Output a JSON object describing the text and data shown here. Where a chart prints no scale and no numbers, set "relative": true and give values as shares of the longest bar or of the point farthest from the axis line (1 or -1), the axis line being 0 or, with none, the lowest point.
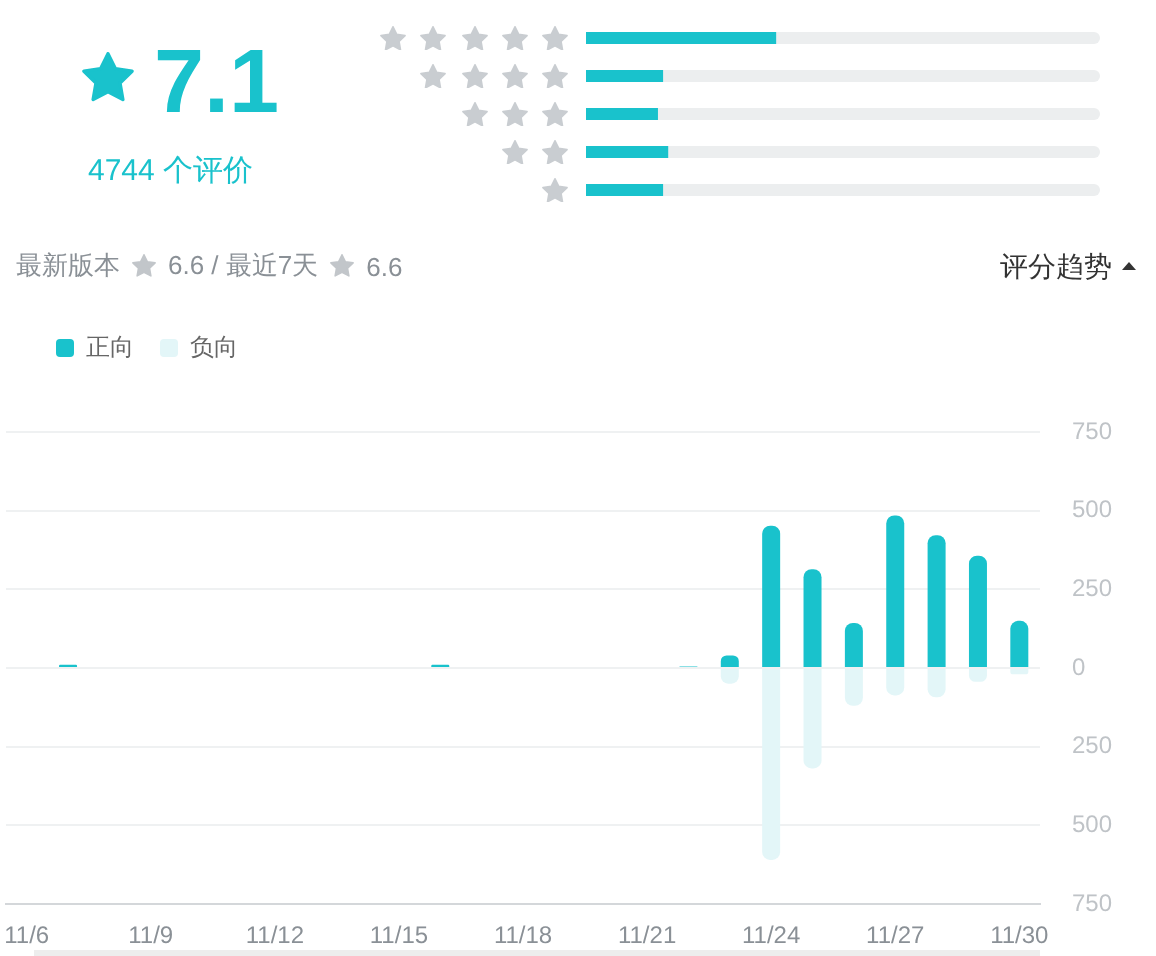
{
  "chart_data": [
    {
      "type": "other",
      "title": "7.1",
      "annotations": [
        "4744 个评价"
      ]
    },
    {
      "type": "bar",
      "orientation": "horizontal",
      "stacked": true,
      "relative": true,
      "categories": [
        null,
        null,
        null,
        null,
        null
      ],
      "series": [
        {
          "color": "#19c2cc",
          "values": [
            0.37,
            0.15,
            0.14,
            0.16,
            0.15
          ]
        },
        {
          "color": "#eceeef",
          "values": [
            0.63,
            0.85,
            0.86,
            0.84,
            0.85
          ]
        }
      ]
    },
    {
      "type": "bar",
      "title": "评分趋势",
      "annotations": [
        "最新版本",
        "6.6 / 最近7天",
        "6.6"
      ],
      "stacked": true,
      "categories": [
        "11/6",
        null,
        null,
        "11/9",
        null,
        null,
        "11/12",
        null,
        null,
        "11/15",
        null,
        null,
        "11/18",
        null,
        null,
        "11/21",
        null,
        null,
        "11/24",
        null,
        null,
        "11/27",
        null,
        null,
        "11/30"
      ],
      "series": [
        {
          "name": "正向",
          "color": "#19c2cc",
          "values": [
            0,
            10,
            0,
            0,
            0,
            0,
            0,
            0,
            0,
            0,
            10,
            0,
            0,
            0,
            0,
            0,
            5,
            40,
            452,
            314,
            143,
            485,
            422,
            357,
            150
          ]
        },
        {
          "name": "负向",
          "color": "#e3f6f8",
          "values": [
            0,
            0,
            0,
            0,
            0,
            0,
            0,
            0,
            0,
            0,
            0,
            0,
            0,
            0,
            0,
            0,
            0,
            -50,
            -610,
            -319,
            -120,
            -87,
            -93,
            -44,
            -20
          ]
        }
      ],
      "ylim": [
        -750,
        750
      ],
      "yticks": [
        {
          "value": -750,
          "label": "750"
        },
        {
          "value": -500,
          "label": "500"
        },
        {
          "value": -250,
          "label": "250"
        },
        0,
        250,
        500,
        750
      ],
      "grid": "y",
      "legend": "top left"
    }
  ]
}
